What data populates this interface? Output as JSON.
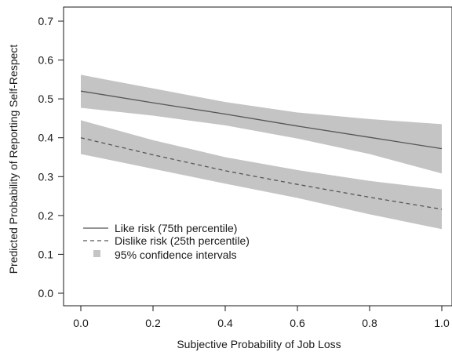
{
  "chart_data": {
    "type": "line",
    "title": "",
    "xlabel": "Subjective Probability of Job Loss",
    "ylabel": "Predicted Probability of Reporting Self-Respect",
    "xlim": [
      0.0,
      1.0
    ],
    "ylim": [
      0.0,
      0.7
    ],
    "xticks": [
      0.0,
      0.2,
      0.4,
      0.6,
      0.8,
      1.0
    ],
    "xtick_labels": [
      "0.0",
      "0.2",
      "0.4",
      "0.6",
      "0.8",
      "1.0"
    ],
    "yticks": [
      0.0,
      0.1,
      0.2,
      0.3,
      0.4,
      0.5,
      0.6,
      0.7
    ],
    "ytick_labels": [
      "0.0",
      "0.1",
      "0.2",
      "0.3",
      "0.4",
      "0.5",
      "0.6",
      "0.7"
    ],
    "grid": false,
    "legend_position": "bottom-left",
    "legend": [
      {
        "label": "Like risk (75th percentile)",
        "style": "solid"
      },
      {
        "label": "Dislike risk (25th percentile)",
        "style": "dashed"
      },
      {
        "label": "95% confidence intervals",
        "style": "band"
      }
    ],
    "series": [
      {
        "name": "Like risk (75th percentile)",
        "style": "solid",
        "color": "#555555",
        "x": [
          0.0,
          0.2,
          0.4,
          0.6,
          0.8,
          1.0
        ],
        "y": [
          0.52,
          0.49,
          0.461,
          0.43,
          0.401,
          0.372
        ],
        "ci_lower": [
          0.477,
          0.457,
          0.432,
          0.398,
          0.358,
          0.308
        ],
        "ci_upper": [
          0.562,
          0.527,
          0.492,
          0.465,
          0.448,
          0.435
        ]
      },
      {
        "name": "Dislike risk (25th percentile)",
        "style": "dashed",
        "color": "#555555",
        "x": [
          0.0,
          0.2,
          0.4,
          0.6,
          0.8,
          1.0
        ],
        "y": [
          0.4,
          0.356,
          0.315,
          0.28,
          0.247,
          0.216
        ],
        "ci_lower": [
          0.358,
          0.32,
          0.282,
          0.245,
          0.203,
          0.165
        ],
        "ci_upper": [
          0.445,
          0.394,
          0.35,
          0.317,
          0.289,
          0.267
        ]
      }
    ],
    "colors": {
      "band": "#c4c4c4",
      "line": "#555555",
      "axis": "#1a1a1a"
    }
  }
}
